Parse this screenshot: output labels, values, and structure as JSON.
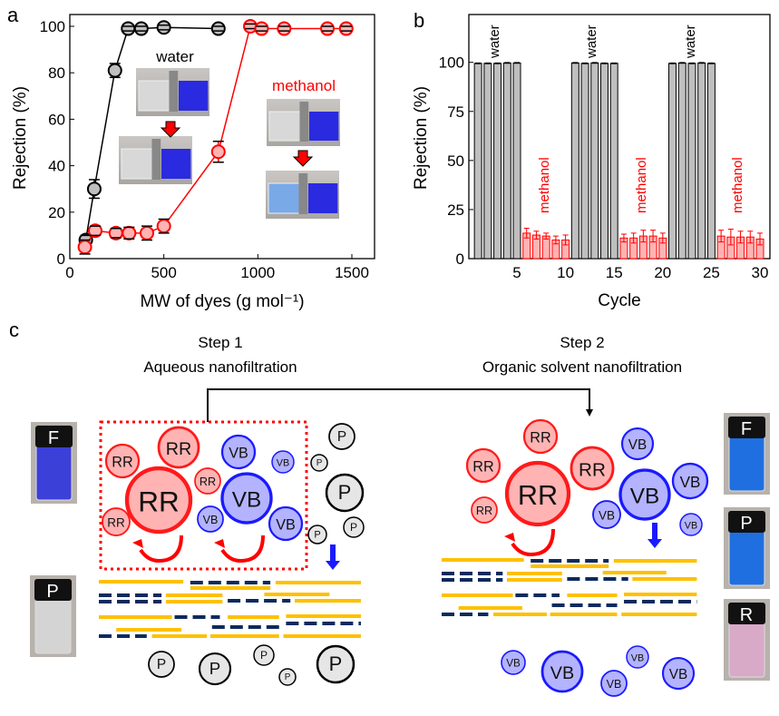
{
  "panels": {
    "a": "a",
    "b": "b",
    "c": "c"
  },
  "colors": {
    "water": "#000000",
    "methanol": "#ff0000",
    "water_fill": "#bfbfbf",
    "methanol_fill": "#ffb3b3",
    "rr": "#ff1a1a",
    "rr_fill": "#ffb3b3",
    "vb": "#1a1aff",
    "vb_fill": "#b3b3ff",
    "p_fill": "#e6e6e6",
    "membrane_gold": "#ffc000",
    "membrane_navy": "#0d2a5e"
  },
  "chart_data": [
    {
      "type": "scatter",
      "xlabel": "MW of dyes (g mol⁻¹)",
      "ylabel": "Rejection (%)",
      "xlim": [
        0,
        1620
      ],
      "ylim": [
        0,
        105
      ],
      "xticks": [
        "0",
        "500",
        "1000",
        "1500"
      ],
      "yticks": [
        "0",
        "20",
        "40",
        "60",
        "80",
        "100"
      ],
      "annotations": [
        "water",
        "methanol"
      ],
      "series": [
        {
          "name": "water",
          "x": [
            85,
            130,
            240,
            310,
            380,
            500,
            790,
            1020,
            1140,
            1370,
            1470
          ],
          "y": [
            8,
            30,
            81,
            99,
            99,
            99.5,
            99,
            99,
            99,
            99,
            99
          ],
          "err": [
            2,
            4,
            3,
            1,
            1,
            1,
            1,
            1,
            1,
            1,
            1
          ]
        },
        {
          "name": "methanol",
          "x": [
            80,
            135,
            245,
            315,
            410,
            500,
            790,
            960,
            1020,
            1140,
            1370,
            1470
          ],
          "y": [
            5,
            12,
            11,
            11,
            11,
            14,
            46,
            100,
            99,
            99,
            99,
            99
          ],
          "err": [
            3,
            2,
            2,
            2.5,
            3,
            3,
            4.5,
            1,
            1,
            1,
            1,
            1
          ]
        }
      ]
    },
    {
      "type": "bar",
      "xlabel": "Cycle",
      "ylabel": "Rejection (%)",
      "xlim": [
        0.05,
        30.5
      ],
      "ylim": [
        0,
        124
      ],
      "xticks": [
        "5",
        "10",
        "15",
        "20",
        "25",
        "30"
      ],
      "yticks": [
        "0",
        "25",
        "50",
        "75",
        "100"
      ],
      "annotations": [
        "water",
        "methanol",
        "water",
        "methanol",
        "water",
        "methanol"
      ],
      "cycles": [
        1,
        2,
        3,
        4,
        5,
        6,
        7,
        8,
        9,
        10,
        11,
        12,
        13,
        14,
        15,
        16,
        17,
        18,
        19,
        20,
        21,
        22,
        23,
        24,
        25,
        26,
        27,
        28,
        29,
        30
      ],
      "solvent": [
        "water",
        "water",
        "water",
        "water",
        "water",
        "methanol",
        "methanol",
        "methanol",
        "methanol",
        "methanol",
        "water",
        "water",
        "water",
        "water",
        "water",
        "methanol",
        "methanol",
        "methanol",
        "methanol",
        "methanol",
        "water",
        "water",
        "water",
        "water",
        "water",
        "methanol",
        "methanol",
        "methanol",
        "methanol",
        "methanol"
      ],
      "values": [
        99.5,
        99.5,
        99.5,
        99.7,
        99.7,
        13,
        12,
        11.5,
        9.5,
        9.5,
        99.7,
        99.5,
        99.7,
        99.5,
        99.5,
        10.5,
        10.5,
        11.5,
        11.5,
        10.5,
        99.5,
        99.7,
        99.5,
        99.7,
        99.5,
        11.5,
        11,
        11,
        11,
        10
      ],
      "err": [
        0.2,
        0.2,
        0.2,
        0.2,
        0.2,
        2.5,
        2,
        1.5,
        2,
        2.5,
        0.2,
        0.2,
        0.2,
        0.2,
        0.2,
        2,
        2.5,
        3,
        3,
        2.5,
        0.2,
        0.2,
        0.2,
        0.2,
        0.2,
        3,
        4,
        3,
        3,
        3
      ]
    }
  ],
  "inset_photos": {
    "water_label": "water",
    "methanol_label": "methanol"
  },
  "diagram": {
    "step1_title": "Step 1",
    "step1_subtitle": "Aqueous nanofiltration",
    "step2_title": "Step 2",
    "step2_subtitle": "Organic solvent nanofiltration",
    "labels": {
      "rr": "RR",
      "vb": "VB",
      "p": "P"
    },
    "vials_left": [
      "F",
      "P"
    ],
    "vials_right": [
      "F",
      "P",
      "R"
    ]
  }
}
